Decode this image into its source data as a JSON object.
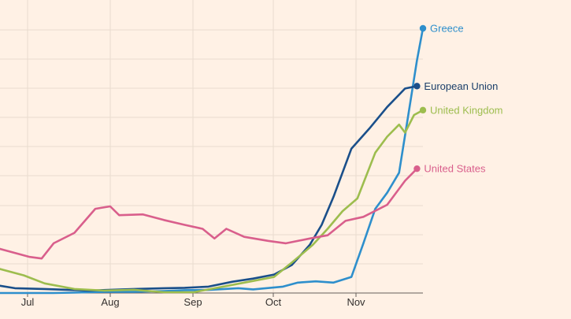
{
  "chart_data": {
    "type": "line",
    "title": "",
    "xlabel": "",
    "ylabel": "",
    "x_ticks": [
      "Jul",
      "Aug",
      "Sep",
      "Oct",
      "Nov"
    ],
    "grid": true,
    "series": [
      {
        "name": "Greece",
        "color": "#2e8fcc",
        "values": [
          [
            0,
            0.0
          ],
          [
            18,
            0.0
          ],
          [
            25,
            0.5
          ],
          [
            35,
            1.5
          ],
          [
            45,
            1.6
          ],
          [
            55,
            2.5
          ],
          [
            62,
            3.5
          ],
          [
            70,
            3.8
          ],
          [
            80,
            6.0
          ],
          [
            85,
            4.5
          ],
          [
            95,
            8.0
          ],
          [
            100,
            13.0
          ],
          [
            106,
            14.5
          ],
          [
            112,
            13.0
          ],
          [
            118,
            20.0
          ],
          [
            122,
            62.0
          ],
          [
            126,
            105.0
          ],
          [
            130,
            125.0
          ],
          [
            134,
            150.0
          ],
          [
            137,
            220.0
          ],
          [
            140,
            290.0
          ],
          [
            142,
            330.0
          ]
        ]
      },
      {
        "name": "European Union",
        "color": "#1a4f8a",
        "values": [
          [
            0,
            9.0
          ],
          [
            5,
            6.0
          ],
          [
            15,
            5.0
          ],
          [
            30,
            3.0
          ],
          [
            45,
            5.0
          ],
          [
            55,
            6.0
          ],
          [
            62,
            6.5
          ],
          [
            70,
            8.0
          ],
          [
            78,
            14.0
          ],
          [
            85,
            18.0
          ],
          [
            92,
            23.0
          ],
          [
            98,
            35.0
          ],
          [
            104,
            60.0
          ],
          [
            108,
            85.0
          ],
          [
            112,
            120.0
          ],
          [
            118,
            180.0
          ],
          [
            124,
            205.0
          ],
          [
            130,
            232.0
          ],
          [
            136,
            255.0
          ],
          [
            140,
            258.0
          ]
        ]
      },
      {
        "name": "United Kingdom",
        "color": "#9dbd4e",
        "values": [
          [
            0,
            30.0
          ],
          [
            8,
            22.0
          ],
          [
            15,
            12.0
          ],
          [
            25,
            5.0
          ],
          [
            35,
            3.0
          ],
          [
            45,
            4.0
          ],
          [
            55,
            1.0
          ],
          [
            65,
            1.0
          ],
          [
            75,
            8.0
          ],
          [
            85,
            15.0
          ],
          [
            92,
            20.0
          ],
          [
            98,
            38.0
          ],
          [
            105,
            60.0
          ],
          [
            110,
            80.0
          ],
          [
            115,
            102.0
          ],
          [
            120,
            118.0
          ],
          [
            126,
            175.0
          ],
          [
            130,
            195.0
          ],
          [
            134,
            210.0
          ],
          [
            136,
            200.0
          ],
          [
            139,
            222.0
          ],
          [
            142,
            228.0
          ]
        ]
      },
      {
        "name": "United States",
        "color": "#d95f8c",
        "values": [
          [
            0,
            55.0
          ],
          [
            5,
            50.0
          ],
          [
            10,
            45.0
          ],
          [
            14,
            43.0
          ],
          [
            18,
            62.0
          ],
          [
            25,
            75.0
          ],
          [
            32,
            105.0
          ],
          [
            37,
            108.0
          ],
          [
            40,
            97.0
          ],
          [
            48,
            98.0
          ],
          [
            55,
            91.0
          ],
          [
            62,
            85.0
          ],
          [
            68,
            80.0
          ],
          [
            72,
            68.0
          ],
          [
            76,
            80.0
          ],
          [
            82,
            70.0
          ],
          [
            90,
            65.0
          ],
          [
            96,
            62.0
          ],
          [
            104,
            68.0
          ],
          [
            110,
            72.0
          ],
          [
            116,
            90.0
          ],
          [
            122,
            95.0
          ],
          [
            130,
            110.0
          ],
          [
            136,
            140.0
          ],
          [
            140,
            155.0
          ]
        ]
      }
    ]
  }
}
